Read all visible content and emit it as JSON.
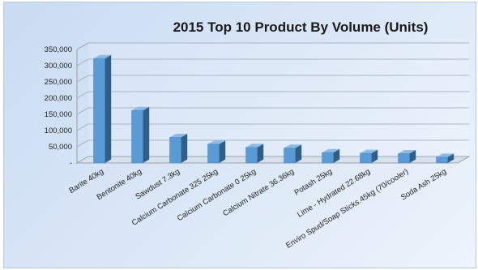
{
  "chart_data": {
    "type": "bar",
    "title": "2015 Top 10 Product By Volume (Units)",
    "xlabel": "",
    "ylabel": "",
    "ylim": [
      0,
      350000
    ],
    "y_tick_labels": [
      "-",
      "50,000",
      "100,000",
      "150,000",
      "200,000",
      "250,000",
      "300,000",
      "350,000"
    ],
    "categories": [
      "Barite 40kg",
      "Bentonite 40kg",
      "Sawdust 7.3kg",
      "Calcium Carbonate 325 25kg",
      "Calcium Carbonate 0 25kg",
      "Calcium Nitrate 36.36kg",
      "Potash 25kg",
      "Lime - Hydrated 22.68kg",
      "Enviro Spud/Soap Sticks.45kg (70/cooler)",
      "Soda Ash 25kg"
    ],
    "values": [
      322000,
      162000,
      79000,
      58000,
      48000,
      46000,
      32000,
      30000,
      29000,
      18000
    ],
    "grid": true,
    "legend": "none",
    "bar_style": "3d-column",
    "colors": {
      "bar_front": "#5b9bd5",
      "bar_side": "#2e5f8a",
      "bar_top": "#8dbbe6",
      "gridline": "#9aa7b5",
      "axis": "#8c8c8c"
    }
  }
}
